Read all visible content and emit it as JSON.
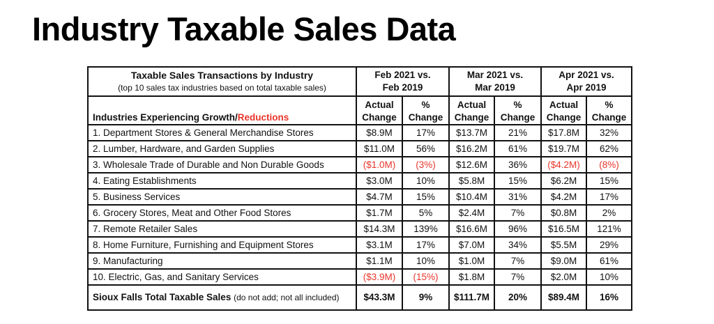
{
  "title": "Industry Taxable Sales Data",
  "table": {
    "heading": "Taxable Sales Transactions by Industry",
    "subheading": "(top 10 sales tax industries based on total taxable sales)",
    "periods": [
      {
        "line1": "Feb 2021 vs.",
        "line2": "Feb 2019"
      },
      {
        "line1": "Mar 2021 vs.",
        "line2": "Mar 2019"
      },
      {
        "line1": "Apr 2021 vs.",
        "line2": "Apr 2019"
      }
    ],
    "industry_label_growth": "Industries Experiencing Growth/",
    "industry_label_reductions": "Reductions",
    "col_actual_1": "Actual",
    "col_actual_2": "Change",
    "col_pct_1": "%",
    "col_pct_2": "Change",
    "reduction_color": "#e8352a",
    "rows": [
      {
        "name": "1. Department Stores & General Merchandise Stores",
        "cells": [
          "$8.9M",
          "17%",
          "$13.7M",
          "21%",
          "$17.8M",
          "32%"
        ],
        "neg": [
          false,
          false,
          false,
          false,
          false,
          false
        ]
      },
      {
        "name": "2. Lumber, Hardware, and Garden Supplies",
        "cells": [
          "$11.0M",
          "56%",
          "$16.2M",
          "61%",
          "$19.7M",
          "62%"
        ],
        "neg": [
          false,
          false,
          false,
          false,
          false,
          false
        ]
      },
      {
        "name": "3. Wholesale Trade of Durable and Non Durable Goods",
        "cells": [
          "($1.0M)",
          "(3%)",
          "$12.6M",
          "36%",
          "($4.2M)",
          "(8%)"
        ],
        "neg": [
          true,
          true,
          false,
          false,
          true,
          true
        ]
      },
      {
        "name": "4. Eating Establishments",
        "cells": [
          "$3.0M",
          "10%",
          "$5.8M",
          "15%",
          "$6.2M",
          "15%"
        ],
        "neg": [
          false,
          false,
          false,
          false,
          false,
          false
        ]
      },
      {
        "name": "5. Business Services",
        "cells": [
          "$4.7M",
          "15%",
          "$10.4M",
          "31%",
          "$4.2M",
          "17%"
        ],
        "neg": [
          false,
          false,
          false,
          false,
          false,
          false
        ]
      },
      {
        "name": "6. Grocery Stores, Meat and Other Food Stores",
        "cells": [
          "$1.7M",
          "5%",
          "$2.4M",
          "7%",
          "$0.8M",
          "2%"
        ],
        "neg": [
          false,
          false,
          false,
          false,
          false,
          false
        ]
      },
      {
        "name": "7. Remote Retailer Sales",
        "cells": [
          "$14.3M",
          "139%",
          "$16.6M",
          "96%",
          "$16.5M",
          "121%"
        ],
        "neg": [
          false,
          false,
          false,
          false,
          false,
          false
        ]
      },
      {
        "name": "8. Home Furniture, Furnishing and Equipment Stores",
        "cells": [
          "$3.1M",
          "17%",
          "$7.0M",
          "34%",
          "$5.5M",
          "29%"
        ],
        "neg": [
          false,
          false,
          false,
          false,
          false,
          false
        ]
      },
      {
        "name": "9. Manufacturing",
        "cells": [
          "$1.1M",
          "10%",
          "$1.0M",
          "7%",
          "$9.0M",
          "61%"
        ],
        "neg": [
          false,
          false,
          false,
          false,
          false,
          false
        ]
      },
      {
        "name": "10. Electric, Gas, and Sanitary Services",
        "cells": [
          "($3.9M)",
          "(15%)",
          "$1.8M",
          "7%",
          "$2.0M",
          "10%"
        ],
        "neg": [
          true,
          true,
          false,
          false,
          false,
          false
        ]
      }
    ],
    "total": {
      "label": "Sioux Falls Total Taxable Sales",
      "note": "(do not add; not all included)",
      "cells": [
        "$43.3M",
        "9%",
        "$111.7M",
        "20%",
        "$89.4M",
        "16%"
      ]
    }
  }
}
